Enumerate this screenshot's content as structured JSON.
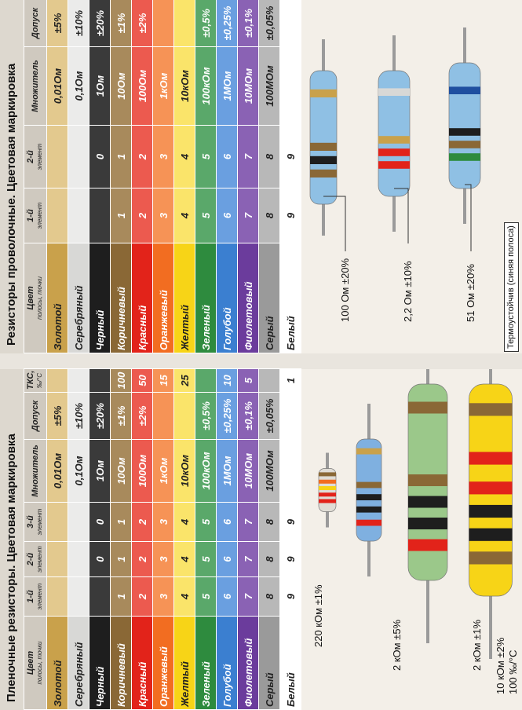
{
  "wire": {
    "title": "Резисторы проволочные. Цветовая маркировка",
    "headers": [
      {
        "text": "Цвет",
        "sub": "полосы, точки"
      },
      {
        "text": "1-й",
        "sub": "элемент"
      },
      {
        "text": "2-й",
        "sub": "элемент"
      },
      {
        "text": "Множитель"
      },
      {
        "text": "Допуск"
      }
    ],
    "rows": [
      [
        "Золотой",
        null,
        null,
        "0,01Ом",
        "±5%"
      ],
      [
        "Серебряный",
        null,
        null,
        "0,1Ом",
        "±10%"
      ],
      [
        "Черный",
        null,
        "0",
        "1Ом",
        "±20%"
      ],
      [
        "Коричневый",
        "1",
        "1",
        "10Ом",
        "±1%"
      ],
      [
        "Красный",
        "2",
        "2",
        "100Ом",
        "±2%"
      ],
      [
        "Оранжевый",
        "3",
        "3",
        "1кОм",
        null
      ],
      [
        "Желтый",
        "4",
        "4",
        "10кОм",
        null
      ],
      [
        "Зеленый",
        "5",
        "5",
        "100кОм",
        "±0,5%"
      ],
      [
        "Голубой",
        "6",
        "6",
        "1МОм",
        "±0,25%"
      ],
      [
        "Фиолетовый",
        "7",
        "7",
        "10МОм",
        "±0,1%"
      ],
      [
        "Серый",
        "8",
        "8",
        "100МОм",
        "±0,05%"
      ],
      [
        "Белый",
        "9",
        "9",
        null,
        null
      ]
    ],
    "examples": [
      "100 Ом ±20%",
      "2,2 Ом ±10%",
      "51 Ом ±20%"
    ],
    "note": "Термоустойчив (синяя полоса)"
  },
  "film": {
    "title": "Пленочные резисторы. Цветовая маркировка",
    "headers": [
      {
        "text": "Цвет",
        "sub": "полосы, точки"
      },
      {
        "text": "1-й",
        "sub": "элемент"
      },
      {
        "text": "2-й",
        "sub": "элемент"
      },
      {
        "text": "3-й",
        "sub": "элемент"
      },
      {
        "text": "Множитель"
      },
      {
        "text": "Допуск"
      },
      {
        "text": "ТКС,",
        "sub": "‰/°C"
      }
    ],
    "rows": [
      [
        "Золотой",
        null,
        null,
        null,
        "0,01Ом",
        "±5%",
        null
      ],
      [
        "Серебряный",
        null,
        null,
        null,
        "0,1Ом",
        "±10%",
        null
      ],
      [
        "Черный",
        null,
        "0",
        "0",
        "1Ом",
        "±20%",
        null
      ],
      [
        "Коричневый",
        "1",
        "1",
        "1",
        "10Ом",
        "±1%",
        "100"
      ],
      [
        "Красный",
        "2",
        "2",
        "2",
        "100Ом",
        "±2%",
        "50"
      ],
      [
        "Оранжевый",
        "3",
        "3",
        "3",
        "1кОм",
        null,
        "15"
      ],
      [
        "Желтый",
        "4",
        "4",
        "4",
        "10кОм",
        null,
        "25"
      ],
      [
        "Зеленый",
        "5",
        "5",
        "5",
        "100кОм",
        "±0,5%",
        null
      ],
      [
        "Голубой",
        "6",
        "6",
        "6",
        "1МОм",
        "±0,25%",
        "10"
      ],
      [
        "Фиолетовый",
        "7",
        "7",
        "7",
        "10МОм",
        "±0,1%",
        "5"
      ],
      [
        "Серый",
        "8",
        "8",
        "8",
        "100МОм",
        "±0,05%",
        null
      ],
      [
        "Белый",
        "9",
        "9",
        "9",
        null,
        null,
        "1"
      ]
    ],
    "examples": [
      "220 кОм ±1%",
      "2 кОм ±5%",
      "2 кОм ±1%",
      "10 кОм ±2%"
    ],
    "extra": "100 ‰/°C"
  }
}
